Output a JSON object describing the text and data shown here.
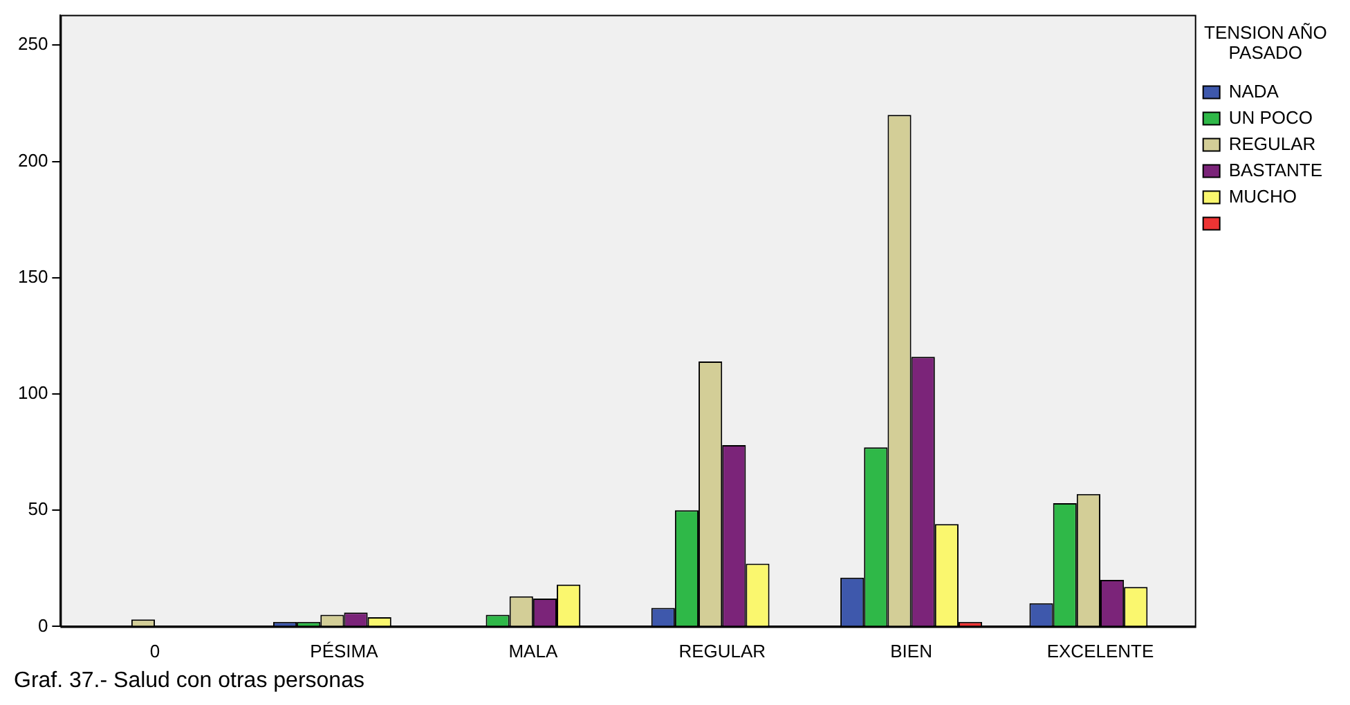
{
  "chart_data": {
    "type": "bar",
    "title": "Graf. 37.- Salud con otras personas",
    "legend_title": "TENSION AÑO PASADO",
    "categories": [
      "0",
      "PÉSIMA",
      "MALA",
      "REGULAR",
      "BIEN",
      "EXCELENTE"
    ],
    "series": [
      {
        "name": "NADA",
        "color": "#3e58ac",
        "values": [
          0,
          2,
          0,
          8,
          21,
          10
        ]
      },
      {
        "name": "UN POCO",
        "color": "#2fb848",
        "values": [
          0,
          2,
          5,
          50,
          77,
          53
        ]
      },
      {
        "name": "REGULAR",
        "color": "#d3ce97",
        "values": [
          3,
          5,
          13,
          114,
          220,
          57
        ]
      },
      {
        "name": "BASTANTE",
        "color": "#7b2479",
        "values": [
          0,
          6,
          12,
          78,
          116,
          20
        ]
      },
      {
        "name": "MUCHO",
        "color": "#faf76e",
        "values": [
          0,
          4,
          18,
          27,
          44,
          17
        ]
      },
      {
        "color": "#ee3434",
        "values": [
          0,
          0,
          0,
          0,
          2,
          0
        ]
      }
    ],
    "ylim": [
      0,
      263
    ],
    "yticks": [
      0,
      50,
      100,
      150,
      200,
      250
    ],
    "grid": false,
    "legend": "top right"
  }
}
